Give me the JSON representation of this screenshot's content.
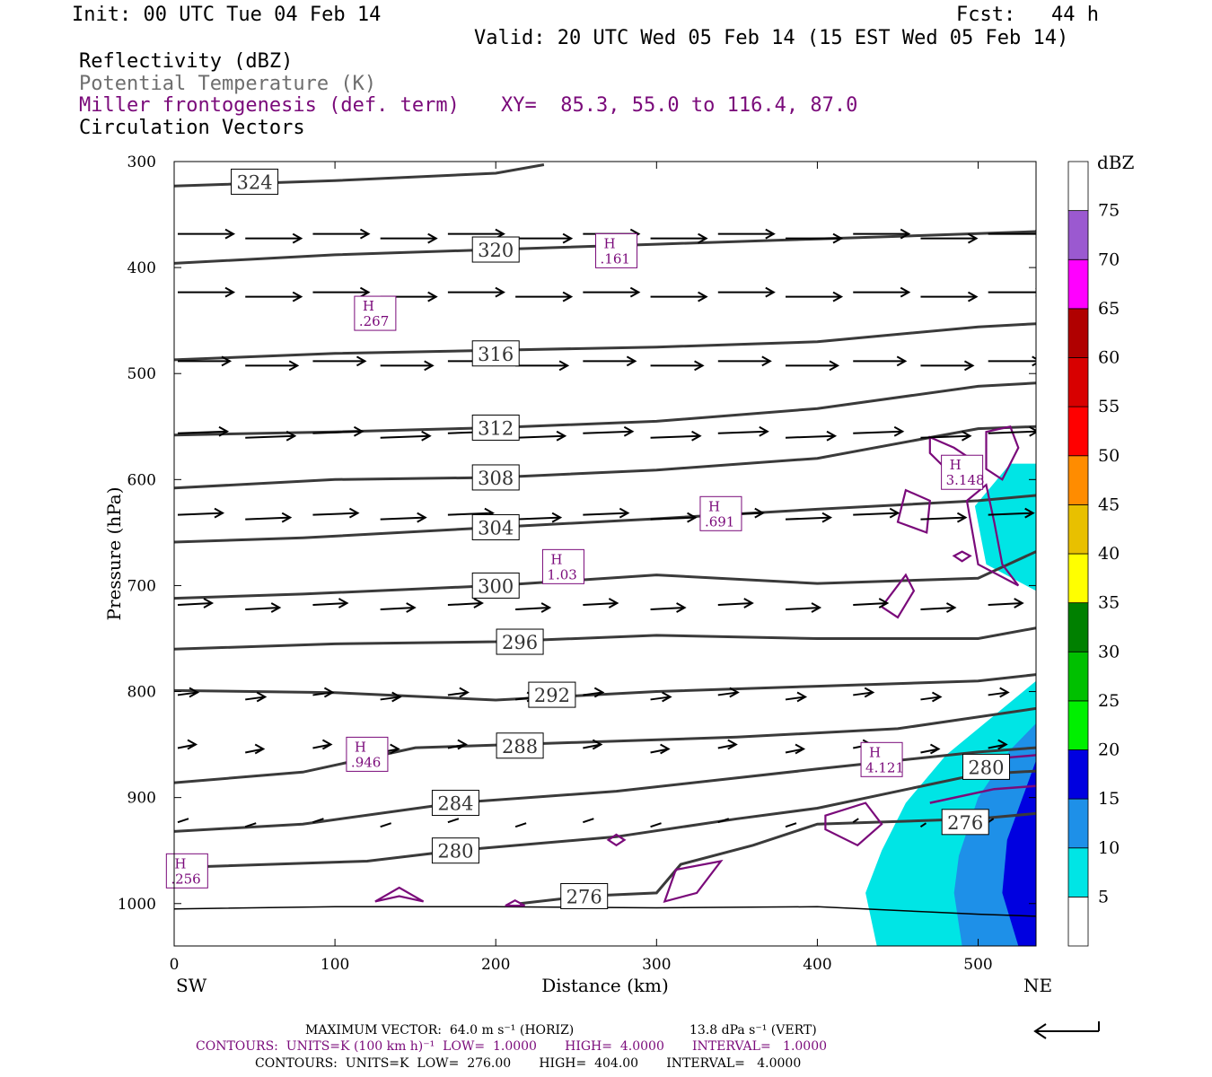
{
  "header": {
    "init": "Init: 00 UTC Tue 04 Feb 14",
    "fcst": "Fcst:   44 h",
    "valid": "Valid: 20 UTC Wed 05 Feb 14 (15 EST Wed 05 Feb 14)",
    "field1": "Reflectivity (dBZ)",
    "field2": "Potential Temperature (K)",
    "field3": "Miller frontogenesis (def. term)",
    "xy": "XY=  85.3, 55.0 to 116.4, 87.0",
    "field4": "Circulation Vectors"
  },
  "footer": {
    "max_vector": "MAXIMUM VECTOR:  64.0 m s⁻¹ (HORIZ)",
    "max_vector_vert": "13.8 dPa s⁻¹ (VERT)",
    "contours_fronto": "CONTOURS:  UNITS=K (100 km h)⁻¹  LOW=  1.0000       HIGH=  4.0000       INTERVAL=   1.0000",
    "contours_theta": "CONTOURS:  UNITS=K  LOW=  276.00       HIGH=  404.00       INTERVAL=   4.0000"
  },
  "chart_data": {
    "type": "cross-section",
    "xlabel": "Distance (km)",
    "ylabel": "Pressure (hPa)",
    "x_ticks": [
      0,
      100,
      200,
      300,
      400,
      500
    ],
    "y_ticks": [
      300,
      400,
      500,
      600,
      700,
      800,
      900,
      1000
    ],
    "xlim": [
      0,
      536
    ],
    "ylim": [
      1040,
      300
    ],
    "endpoint_left": "SW",
    "endpoint_right": "NE",
    "colorbar": {
      "title": "dBZ",
      "levels": [
        5,
        10,
        15,
        20,
        25,
        30,
        35,
        40,
        45,
        50,
        55,
        60,
        65,
        70,
        75
      ],
      "colors": [
        "#ffffff",
        "#00e5e5",
        "#1e90e8",
        "#0000e0",
        "#00f000",
        "#00c000",
        "#008000",
        "#ffff00",
        "#e8c000",
        "#ff8c00",
        "#ff0000",
        "#d80000",
        "#b00000",
        "#ff00ff",
        "#9b59d0",
        "#ffffff"
      ]
    },
    "theta_contours": [
      {
        "label": "324",
        "label_x": 50,
        "label_p": 319,
        "points": [
          [
            0,
            323
          ],
          [
            100,
            318
          ],
          [
            200,
            311
          ],
          [
            230,
            303
          ]
        ]
      },
      {
        "label": "320",
        "label_x": 200,
        "label_p": 383,
        "points": [
          [
            0,
            396
          ],
          [
            100,
            388
          ],
          [
            200,
            383
          ],
          [
            300,
            378
          ],
          [
            400,
            373
          ],
          [
            500,
            368
          ],
          [
            536,
            366
          ]
        ]
      },
      {
        "label": "316",
        "label_x": 200,
        "label_p": 481,
        "points": [
          [
            0,
            487
          ],
          [
            100,
            481
          ],
          [
            200,
            478
          ],
          [
            300,
            475
          ],
          [
            400,
            470
          ],
          [
            500,
            456
          ],
          [
            536,
            453
          ]
        ]
      },
      {
        "label": "312",
        "label_x": 200,
        "label_p": 551,
        "points": [
          [
            0,
            558
          ],
          [
            100,
            555
          ],
          [
            200,
            551
          ],
          [
            300,
            545
          ],
          [
            400,
            533
          ],
          [
            500,
            512
          ],
          [
            536,
            509
          ]
        ]
      },
      {
        "label": "308",
        "label_x": 200,
        "label_p": 598,
        "points": [
          [
            0,
            608
          ],
          [
            100,
            600
          ],
          [
            200,
            598
          ],
          [
            300,
            591
          ],
          [
            400,
            580
          ],
          [
            500,
            552
          ],
          [
            536,
            550
          ]
        ]
      },
      {
        "label": "304",
        "label_x": 200,
        "label_p": 645,
        "points": [
          [
            0,
            659
          ],
          [
            80,
            655
          ],
          [
            200,
            645
          ],
          [
            300,
            637
          ],
          [
            400,
            628
          ],
          [
            500,
            620
          ],
          [
            536,
            615
          ]
        ]
      },
      {
        "label": "300",
        "label_x": 200,
        "label_p": 700,
        "points": [
          [
            0,
            712
          ],
          [
            80,
            708
          ],
          [
            200,
            700
          ],
          [
            300,
            690
          ],
          [
            400,
            698
          ],
          [
            500,
            693
          ],
          [
            536,
            668
          ]
        ]
      },
      {
        "label": "296",
        "label_x": 215,
        "label_p": 753,
        "points": [
          [
            0,
            760
          ],
          [
            100,
            755
          ],
          [
            200,
            753
          ],
          [
            300,
            747
          ],
          [
            400,
            750
          ],
          [
            500,
            750
          ],
          [
            536,
            740
          ]
        ]
      },
      {
        "label": "292",
        "label_x": 235,
        "label_p": 803,
        "points": [
          [
            0,
            799
          ],
          [
            100,
            801
          ],
          [
            200,
            808
          ],
          [
            300,
            800
          ],
          [
            400,
            795
          ],
          [
            500,
            790
          ],
          [
            536,
            784
          ]
        ]
      },
      {
        "label": "288",
        "label_x": 215,
        "label_p": 851,
        "points": [
          [
            0,
            886
          ],
          [
            80,
            876
          ],
          [
            150,
            853
          ],
          [
            250,
            848
          ],
          [
            350,
            843
          ],
          [
            450,
            835
          ],
          [
            536,
            816
          ]
        ]
      },
      {
        "label": "284",
        "label_x": 175,
        "label_p": 905,
        "points": [
          [
            0,
            932
          ],
          [
            80,
            925
          ],
          [
            175,
            905
          ],
          [
            275,
            894
          ],
          [
            400,
            873
          ],
          [
            500,
            857
          ],
          [
            536,
            853
          ]
        ]
      },
      {
        "label": "280",
        "label_x": 175,
        "label_p": 950,
        "points": [
          [
            0,
            966
          ],
          [
            120,
            960
          ],
          [
            175,
            950
          ],
          [
            275,
            937
          ],
          [
            350,
            920
          ],
          [
            400,
            910
          ],
          [
            500,
            878
          ],
          [
            536,
            875
          ]
        ]
      },
      {
        "label": "276",
        "label_x": 255,
        "label_p": 993,
        "points": [
          [
            215,
            1000
          ],
          [
            255,
            993
          ],
          [
            300,
            990
          ],
          [
            315,
            963
          ],
          [
            360,
            945
          ],
          [
            400,
            925
          ],
          [
            500,
            920
          ],
          [
            536,
            915
          ]
        ]
      },
      {
        "label": "280",
        "label_x": 505,
        "label_p": 871,
        "points": []
      },
      {
        "label": "276",
        "label_x": 492,
        "label_p": 923,
        "points": []
      }
    ],
    "surface_line": [
      [
        0,
        1005
      ],
      [
        100,
        1003
      ],
      [
        200,
        1003
      ],
      [
        300,
        1004
      ],
      [
        400,
        1003
      ],
      [
        500,
        1010
      ],
      [
        536,
        1012
      ]
    ],
    "frontogenesis_maxima": [
      {
        "label": "H",
        "value": ".161",
        "x": 275,
        "p": 385
      },
      {
        "label": "H",
        "value": ".267",
        "x": 125,
        "p": 444
      },
      {
        "label": "H",
        "value": "3.148",
        "x": 490,
        "p": 594
      },
      {
        "label": "H",
        "value": ".691",
        "x": 340,
        "p": 633
      },
      {
        "label": "H",
        "value": "1.03",
        "x": 242,
        "p": 683
      },
      {
        "label": "H",
        "value": ".946",
        "x": 120,
        "p": 860
      },
      {
        "label": "H",
        "value": "4.121",
        "x": 440,
        "p": 865
      },
      {
        "label": "H",
        "value": ".256",
        "x": 8,
        "p": 970
      }
    ]
  },
  "colors": {
    "theta": "#3a3a3a",
    "fronto": "#7a0a7a",
    "axis": "#000000"
  }
}
